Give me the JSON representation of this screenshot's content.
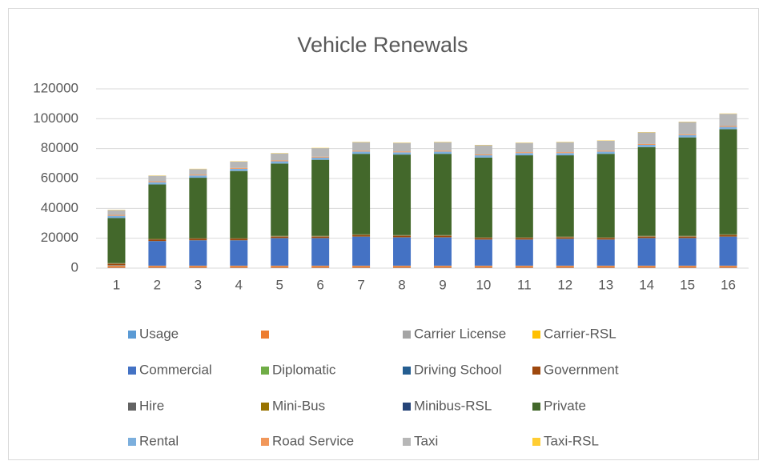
{
  "chart_data": {
    "type": "stacked_bar",
    "title": "Vehicle Renewals",
    "categories": [
      "1",
      "2",
      "3",
      "4",
      "5",
      "6",
      "7",
      "8",
      "9",
      "10",
      "11",
      "12",
      "13",
      "14",
      "15",
      "16"
    ],
    "ylim": [
      0,
      120000
    ],
    "yticks": [
      0,
      20000,
      40000,
      60000,
      80000,
      100000,
      120000
    ],
    "grid": true,
    "legend": "bottom",
    "series": [
      {
        "name": "Usage",
        "color": "#5b9bd5",
        "values": [
          200,
          200,
          200,
          200,
          200,
          200,
          200,
          200,
          200,
          200,
          200,
          200,
          200,
          200,
          200,
          200
        ]
      },
      {
        "name": null,
        "color": "#ed7d31",
        "values": [
          1300,
          1300,
          1300,
          1300,
          1300,
          1300,
          1300,
          1300,
          1300,
          1300,
          1300,
          1300,
          1300,
          1300,
          1300,
          1300
        ]
      },
      {
        "name": "Carrier License",
        "color": "#a5a5a5",
        "values": [
          100,
          100,
          100,
          100,
          100,
          100,
          100,
          100,
          100,
          100,
          100,
          100,
          100,
          100,
          100,
          100
        ]
      },
      {
        "name": "Carrier-RSL",
        "color": "#ffc000",
        "values": [
          50,
          50,
          50,
          50,
          50,
          50,
          50,
          50,
          50,
          50,
          50,
          50,
          50,
          50,
          50,
          50
        ]
      },
      {
        "name": "Commercial",
        "color": "#4472c4",
        "values": [
          150,
          16350,
          16850,
          16850,
          18350,
          18350,
          19350,
          18850,
          18850,
          17350,
          17350,
          17850,
          17350,
          18350,
          18350,
          19350
        ]
      },
      {
        "name": "Diplomatic",
        "color": "#70ad47",
        "values": [
          50,
          50,
          50,
          50,
          50,
          50,
          50,
          50,
          50,
          50,
          50,
          50,
          50,
          50,
          50,
          50
        ]
      },
      {
        "name": "Driving School",
        "color": "#255e91",
        "values": [
          100,
          100,
          100,
          100,
          100,
          100,
          100,
          100,
          100,
          100,
          100,
          100,
          100,
          100,
          100,
          100
        ]
      },
      {
        "name": "Government",
        "color": "#9e480e",
        "values": [
          900,
          900,
          900,
          900,
          900,
          900,
          900,
          900,
          900,
          900,
          900,
          900,
          900,
          900,
          900,
          900
        ]
      },
      {
        "name": "Hire",
        "color": "#636363",
        "values": [
          200,
          200,
          200,
          200,
          200,
          200,
          200,
          200,
          200,
          200,
          200,
          200,
          200,
          200,
          200,
          200
        ]
      },
      {
        "name": "Mini-Bus",
        "color": "#997300",
        "values": [
          300,
          300,
          300,
          300,
          300,
          300,
          300,
          300,
          300,
          300,
          300,
          300,
          300,
          300,
          300,
          300
        ]
      },
      {
        "name": "Minibus-RSL",
        "color": "#264478",
        "values": [
          50,
          50,
          50,
          50,
          50,
          50,
          50,
          50,
          50,
          50,
          50,
          50,
          50,
          50,
          50,
          50
        ]
      },
      {
        "name": "Private",
        "color": "#43682b",
        "values": [
          30100,
          36400,
          40400,
          44900,
          48400,
          50900,
          53900,
          53900,
          54400,
          53400,
          54900,
          54400,
          55900,
          59400,
          65900,
          70400
        ]
      },
      {
        "name": "Rental",
        "color": "#7cafdd",
        "values": [
          1500,
          1500,
          1500,
          1500,
          1500,
          1500,
          1500,
          1500,
          1500,
          1500,
          1500,
          1500,
          1500,
          1500,
          1500,
          1500
        ]
      },
      {
        "name": "Road Service",
        "color": "#f1975a",
        "values": [
          600,
          600,
          600,
          600,
          600,
          600,
          600,
          600,
          600,
          600,
          600,
          600,
          600,
          600,
          600,
          600
        ]
      },
      {
        "name": "Taxi",
        "color": "#b7b7b7",
        "values": [
          3200,
          3700,
          3700,
          4200,
          4700,
          5700,
          5700,
          5700,
          5700,
          6200,
          6200,
          6700,
          6700,
          7700,
          8200,
          8200
        ]
      },
      {
        "name": "Taxi-RSL",
        "color": "#ffcd33",
        "values": [
          200,
          200,
          200,
          200,
          200,
          200,
          200,
          200,
          200,
          200,
          200,
          200,
          200,
          200,
          200,
          200
        ]
      }
    ]
  }
}
